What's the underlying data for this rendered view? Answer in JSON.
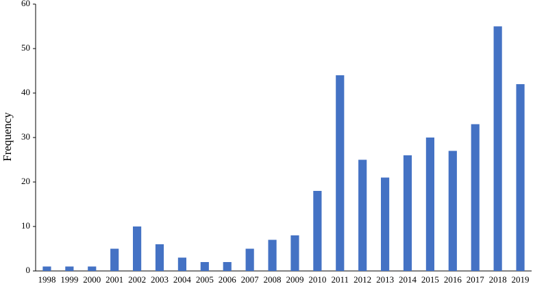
{
  "chart_data": {
    "type": "bar",
    "y_label": "Frequency",
    "categories": [
      "1998",
      "1999",
      "2000",
      "2001",
      "2002",
      "2003",
      "2004",
      "2005",
      "2006",
      "2007",
      "2008",
      "2009",
      "2010",
      "2011",
      "2012",
      "2013",
      "2014",
      "2015",
      "2016",
      "2017",
      "2018",
      "2019"
    ],
    "values": [
      1,
      1,
      1,
      5,
      10,
      6,
      3,
      2,
      2,
      5,
      7,
      8,
      18,
      44,
      25,
      21,
      26,
      30,
      27,
      33,
      55,
      42
    ],
    "color": "#4472c4",
    "ylim": [
      0,
      60
    ],
    "yticks": [
      0,
      10,
      20,
      30,
      40,
      50,
      60
    ],
    "grid": false
  }
}
